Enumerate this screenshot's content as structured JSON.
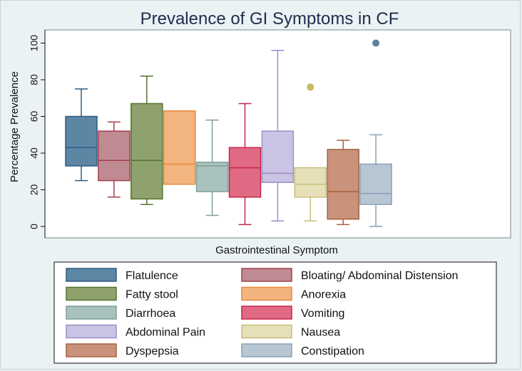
{
  "chart_data": {
    "type": "box",
    "title": "Prevalence of GI Symptoms in CF",
    "xlabel": "Gastrointestinal Symptom",
    "ylabel": "Percentage Prevalence",
    "ylim": [
      0,
      100
    ],
    "yticks": [
      0,
      20,
      40,
      60,
      80,
      100
    ],
    "grid": false,
    "legend_position": "bottom",
    "series": [
      {
        "name": "Flatulence",
        "color": "#5d86a5",
        "whisker_low": 25,
        "q1": 33,
        "median": 43,
        "q3": 60,
        "whisker_high": 75,
        "outliers": []
      },
      {
        "name": "Bloating/ Abdominal Distension",
        "color": "#c08a92",
        "whisker_low": 16,
        "q1": 25,
        "median": 36,
        "q3": 52,
        "whisker_high": 57,
        "outliers": []
      },
      {
        "name": "Fatty stool",
        "color": "#8fa26e",
        "whisker_low": 12,
        "q1": 15,
        "median": 36,
        "q3": 67,
        "whisker_high": 82,
        "outliers": []
      },
      {
        "name": "Anorexia",
        "color": "#f2b57f",
        "whisker_low": 23,
        "q1": 23,
        "median": 34,
        "q3": 63,
        "whisker_high": 63,
        "outliers": []
      },
      {
        "name": "Diarrhoea",
        "color": "#a9c2bd",
        "whisker_low": 6,
        "q1": 19,
        "median": 33,
        "q3": 35,
        "whisker_high": 58,
        "outliers": []
      },
      {
        "name": "Vomiting",
        "color": "#e06a84",
        "whisker_low": 1,
        "q1": 16,
        "median": 32,
        "q3": 43,
        "whisker_high": 67,
        "outliers": []
      },
      {
        "name": "Abdominal Pain",
        "color": "#cbc3e3",
        "whisker_low": 3,
        "q1": 24,
        "median": 29,
        "q3": 52,
        "whisker_high": 96,
        "outliers": []
      },
      {
        "name": "Nausea",
        "color": "#e6e0b8",
        "whisker_low": 3,
        "q1": 16,
        "median": 23,
        "q3": 32,
        "whisker_high": 32,
        "outliers": [
          76
        ]
      },
      {
        "name": "Dyspepsia",
        "color": "#c9927a",
        "whisker_low": 1,
        "q1": 4,
        "median": 19,
        "q3": 42,
        "whisker_high": 47,
        "outliers": []
      },
      {
        "name": "Constipation",
        "color": "#b8c6d4",
        "whisker_low": 0,
        "q1": 12,
        "median": 18,
        "q3": 34,
        "whisker_high": 50,
        "outliers": [
          100
        ]
      }
    ],
    "style": {
      "line_colors": [
        "#2f5c80",
        "#a3404f",
        "#55722f",
        "#e8873a",
        "#7fa09a",
        "#c8254b",
        "#9b8fc8",
        "#c8bd7d",
        "#a6613f",
        "#8aa0b8"
      ],
      "outlier_colors": [
        "",
        "",
        "",
        "",
        "",
        "",
        "",
        "#c9b860",
        "",
        "#5e7f9e"
      ]
    }
  }
}
